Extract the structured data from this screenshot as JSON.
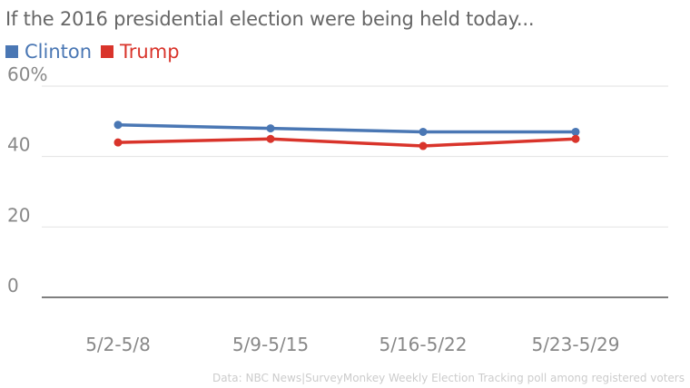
{
  "title": "If the 2016 presidential election were being held today...",
  "source": "Data: NBC News|SurveyMonkey Weekly Election Tracking poll among registered voters",
  "chart_data": {
    "type": "line",
    "title": "If the 2016 presidential election were being held today...",
    "categories": [
      "5/2-5/8",
      "5/9-5/15",
      "5/16-5/22",
      "5/23-5/29"
    ],
    "series": [
      {
        "name": "Clinton",
        "color": "#4a77b4",
        "values": [
          49,
          48,
          47,
          47
        ]
      },
      {
        "name": "Trump",
        "color": "#d9342b",
        "values": [
          44,
          45,
          43,
          45
        ]
      }
    ],
    "yticks": [
      {
        "value": 0,
        "label": "0"
      },
      {
        "value": 20,
        "label": "20"
      },
      {
        "value": 40,
        "label": "40"
      },
      {
        "value": 60,
        "label": "60%"
      }
    ],
    "ylim": [
      0,
      60
    ],
    "xlabel": "",
    "ylabel": "",
    "grid": true,
    "legend_position": "top-left"
  }
}
